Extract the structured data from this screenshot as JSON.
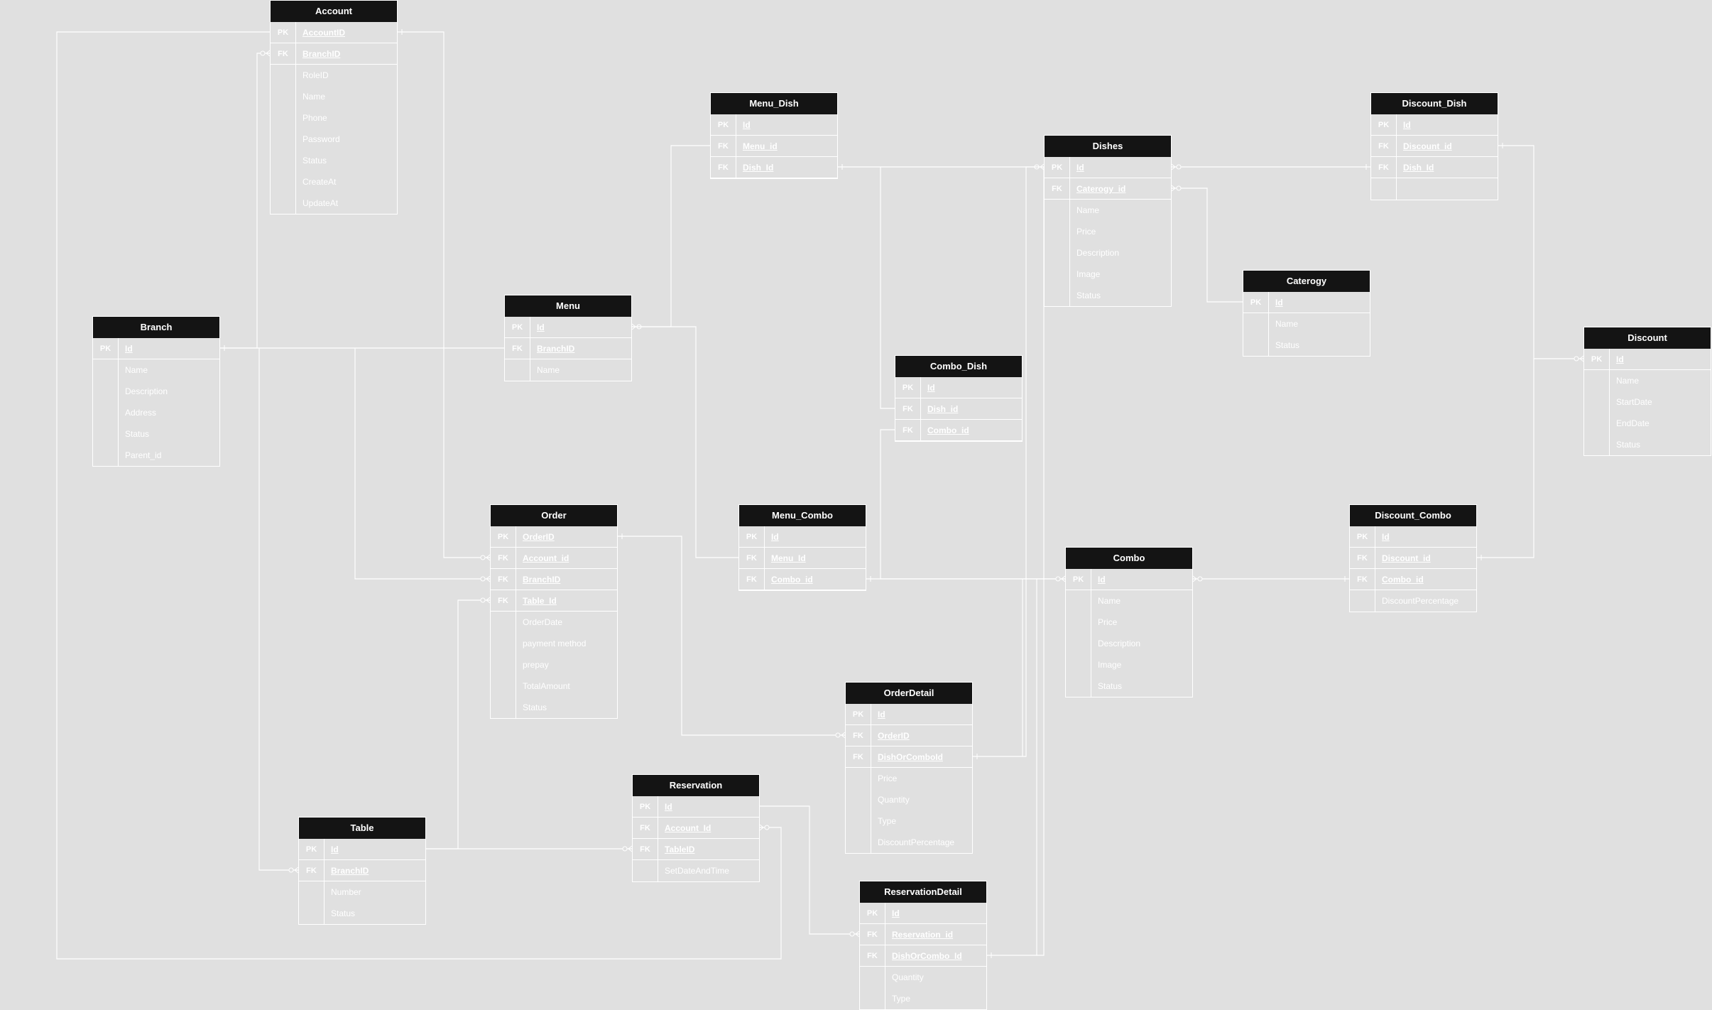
{
  "colors": {
    "background": "#e0e0e0",
    "header": "#141414",
    "line": "#ffffff",
    "text": "#ffffff"
  },
  "entities": [
    {
      "id": "account",
      "title": "Account",
      "rows": [
        {
          "key": "PK",
          "field": "AccountID"
        },
        {
          "key": "FK",
          "field": "BranchID"
        },
        {
          "key": "",
          "field": "RoleID"
        },
        {
          "key": "",
          "field": "Name"
        },
        {
          "key": "",
          "field": "Phone"
        },
        {
          "key": "",
          "field": "Password"
        },
        {
          "key": "",
          "field": "Status"
        },
        {
          "key": "",
          "field": "CreateAt"
        },
        {
          "key": "",
          "field": "UpdateAt"
        }
      ]
    },
    {
      "id": "branch",
      "title": "Branch",
      "rows": [
        {
          "key": "PK",
          "field": "Id"
        },
        {
          "key": "",
          "field": "Name"
        },
        {
          "key": "",
          "field": "Description"
        },
        {
          "key": "",
          "field": "Address"
        },
        {
          "key": "",
          "field": "Status"
        },
        {
          "key": "",
          "field": "Parent_id"
        }
      ]
    },
    {
      "id": "menu",
      "title": "Menu",
      "rows": [
        {
          "key": "PK",
          "field": "Id"
        },
        {
          "key": "FK",
          "field": "BranchID"
        },
        {
          "key": "",
          "field": "Name"
        }
      ]
    },
    {
      "id": "menu_dish",
      "title": "Menu_Dish",
      "rows": [
        {
          "key": "PK",
          "field": "Id"
        },
        {
          "key": "FK",
          "field": "Menu_id"
        },
        {
          "key": "FK",
          "field": "Dish_Id"
        }
      ]
    },
    {
      "id": "dishes",
      "title": "Dishes",
      "rows": [
        {
          "key": "PK",
          "field": "Id"
        },
        {
          "key": "FK",
          "field": "Caterogy_id"
        },
        {
          "key": "",
          "field": "Name"
        },
        {
          "key": "",
          "field": "Price"
        },
        {
          "key": "",
          "field": "Description"
        },
        {
          "key": "",
          "field": "Image"
        },
        {
          "key": "",
          "field": "Status"
        }
      ]
    },
    {
      "id": "discount_dish",
      "title": "Discount_Dish",
      "rows": [
        {
          "key": "PK",
          "field": "Id"
        },
        {
          "key": "FK",
          "field": "Discount_id"
        },
        {
          "key": "FK",
          "field": "Dish_Id"
        },
        {
          "key": "",
          "field": ""
        }
      ]
    },
    {
      "id": "caterogy",
      "title": "Caterogy",
      "rows": [
        {
          "key": "PK",
          "field": "Id"
        },
        {
          "key": "",
          "field": "Name"
        },
        {
          "key": "",
          "field": "Status"
        }
      ]
    },
    {
      "id": "discount",
      "title": "Discount",
      "rows": [
        {
          "key": "PK",
          "field": "Id"
        },
        {
          "key": "",
          "field": "Name"
        },
        {
          "key": "",
          "field": "StartDate"
        },
        {
          "key": "",
          "field": "EndDate"
        },
        {
          "key": "",
          "field": "Status"
        }
      ]
    },
    {
      "id": "combo_dish",
      "title": "Combo_Dish",
      "rows": [
        {
          "key": "PK",
          "field": "Id"
        },
        {
          "key": "FK",
          "field": "Dish_id"
        },
        {
          "key": "FK",
          "field": "Combo_id"
        }
      ]
    },
    {
      "id": "order",
      "title": "Order",
      "rows": [
        {
          "key": "PK",
          "field": "OrderID"
        },
        {
          "key": "FK",
          "field": "Account_id"
        },
        {
          "key": "FK",
          "field": "BranchID"
        },
        {
          "key": "FK",
          "field": "Table_Id"
        },
        {
          "key": "",
          "field": "OrderDate"
        },
        {
          "key": "",
          "field": "payment method"
        },
        {
          "key": "",
          "field": "prepay"
        },
        {
          "key": "",
          "field": "TotalAmount"
        },
        {
          "key": "",
          "field": "Status"
        }
      ]
    },
    {
      "id": "menu_combo",
      "title": "Menu_Combo",
      "rows": [
        {
          "key": "PK",
          "field": "Id"
        },
        {
          "key": "FK",
          "field": "Menu_Id"
        },
        {
          "key": "FK",
          "field": "Combo_id"
        }
      ]
    },
    {
      "id": "combo",
      "title": "Combo",
      "rows": [
        {
          "key": "PK",
          "field": "Id"
        },
        {
          "key": "",
          "field": "Name"
        },
        {
          "key": "",
          "field": "Price"
        },
        {
          "key": "",
          "field": "Description"
        },
        {
          "key": "",
          "field": "Image"
        },
        {
          "key": "",
          "field": "Status"
        }
      ]
    },
    {
      "id": "discount_combo",
      "title": "Discount_Combo",
      "rows": [
        {
          "key": "PK",
          "field": "Id"
        },
        {
          "key": "FK",
          "field": "Discount_id"
        },
        {
          "key": "FK",
          "field": "Combo_id"
        },
        {
          "key": "",
          "field": "DiscountPercentage"
        }
      ]
    },
    {
      "id": "orderdetail",
      "title": "OrderDetail",
      "rows": [
        {
          "key": "PK",
          "field": "Id"
        },
        {
          "key": "FK",
          "field": "OrderID"
        },
        {
          "key": "FK",
          "field": "DishOrComboId"
        },
        {
          "key": "",
          "field": "Price"
        },
        {
          "key": "",
          "field": "Quantity"
        },
        {
          "key": "",
          "field": "Type"
        },
        {
          "key": "",
          "field": "DiscountPercentage"
        }
      ]
    },
    {
      "id": "reservation",
      "title": "Reservation",
      "rows": [
        {
          "key": "PK",
          "field": "Id"
        },
        {
          "key": "FK",
          "field": "Account_Id"
        },
        {
          "key": "FK",
          "field": "TableID"
        },
        {
          "key": "",
          "field": "SetDateAndTime"
        }
      ]
    },
    {
      "id": "table",
      "title": "Table",
      "rows": [
        {
          "key": "PK",
          "field": "Id"
        },
        {
          "key": "FK",
          "field": "BranchID"
        },
        {
          "key": "",
          "field": "Number"
        },
        {
          "key": "",
          "field": "Status"
        }
      ]
    },
    {
      "id": "reservationdetail",
      "title": "ReservationDetail",
      "rows": [
        {
          "key": "PK",
          "field": "Id"
        },
        {
          "key": "FK",
          "field": "Reservation_id"
        },
        {
          "key": "FK",
          "field": "DishOrCombo_Id"
        },
        {
          "key": "",
          "field": "Quantity"
        },
        {
          "key": "",
          "field": "Type"
        }
      ]
    }
  ]
}
